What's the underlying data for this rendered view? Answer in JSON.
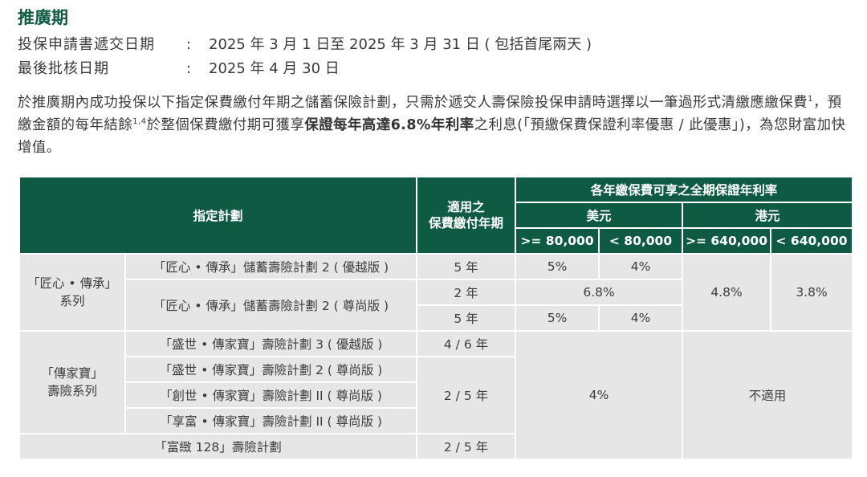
{
  "heading": "推廣期",
  "info": [
    {
      "label": "投保申請書遞交日期",
      "colon": ":",
      "value": "2025 年 3 月 1 日至 2025 年 3 月 31 日 ( 包括首尾兩天 )"
    },
    {
      "label": "最後批核日期",
      "colon": ":",
      "value": "2025 年 4 月 30 日"
    }
  ],
  "paragraph": {
    "part1": "於推廣期內成功投保以下指定保費繳付年期之儲蓄保險計劃，只需於遞交人壽保險投保申請時選擇以一筆過形式清繳應繳保費",
    "sup1": "1",
    "part2": "，預繳金額的每年結餘",
    "sup2": "1,4",
    "part3": "於整個保費繳付期可獲享",
    "bold": "保證每年高達6.8%年利率",
    "part4": "之利息(「預繳保費保證利率優惠 / 此優惠」)，為您財富加快增值。"
  },
  "table": {
    "headers": {
      "plan": "指定計劃",
      "term_line1": "適用之",
      "term_line2": "保費繳付年期",
      "rate_group": "各年繳保費可享之全期保證年利率",
      "usd": "美元",
      "hkd": "港元",
      "usd_hi": ">= 80,000",
      "usd_lo": "< 80,000",
      "hkd_hi": ">= 640,000",
      "hkd_lo": "< 640,000"
    },
    "series1": {
      "name_line1": "「匠心 • 傳承」",
      "name_line2": "系列",
      "plan_a": "「匠心 • 傳承」儲蓄壽險計劃 2 ( 優越版 )",
      "plan_b": "「匠心 • 傳承」儲蓄壽險計劃 2 ( 尊尚版 )",
      "row1": {
        "term": "5 年",
        "usd_hi": "5%",
        "usd_lo": "4%"
      },
      "row2": {
        "term": "2 年",
        "usd_all": "6.8%"
      },
      "row3": {
        "term": "5 年",
        "usd_hi": "5%",
        "usd_lo": "4%"
      },
      "hkd_hi": "4.8%",
      "hkd_lo": "3.8%"
    },
    "series2": {
      "name_line1": "「傳家寶」",
      "name_line2": "壽險系列",
      "plans": [
        "「盛世 • 傳家寶」壽險計劃 3 ( 優越版 )",
        "「盛世 • 傳家寶」壽險計劃 2 ( 尊尚版 )",
        "「創世 • 傳家寶」壽險計劃 II ( 尊尚版 )",
        "「享富 • 傳家寶」壽險計劃 II ( 尊尚版 )"
      ],
      "term_first": "4 / 6 年",
      "term_rest": "2 / 5 年",
      "usd_rate": "4%",
      "hkd_rate": "不適用"
    },
    "extra_plan": {
      "name": "「富緻 128」壽險計劃",
      "term": "2 / 5 年"
    }
  }
}
